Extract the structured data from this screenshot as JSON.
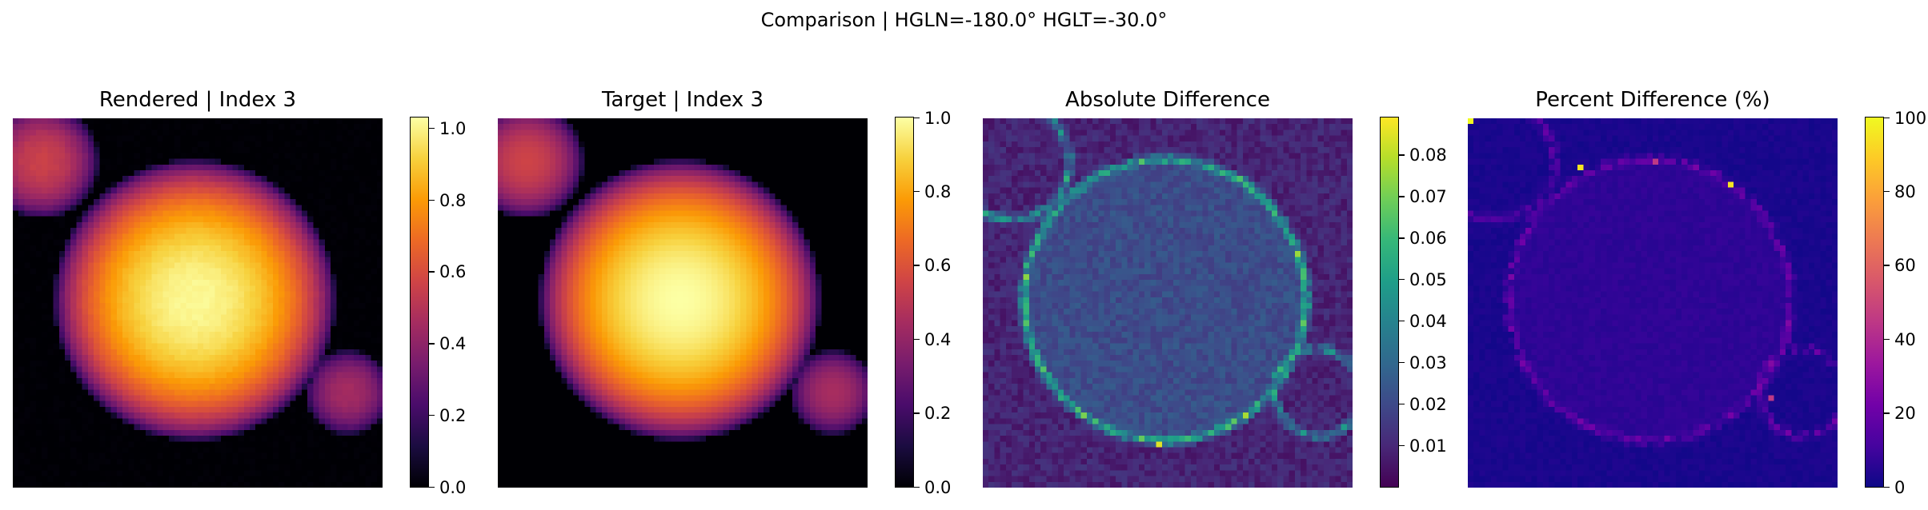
{
  "suptitle": "Comparison | HGLN=-180.0° HGLT=-30.0°",
  "chart_data": [
    {
      "type": "heatmap",
      "title": "Rendered | Index 3",
      "colormap": "inferno",
      "clim": [
        0.0,
        1.03
      ],
      "colorbar_ticks": [
        {
          "value": 0.0,
          "label": "0.0"
        },
        {
          "value": 0.2,
          "label": "0.2"
        },
        {
          "value": 0.4,
          "label": "0.4"
        },
        {
          "value": 0.6,
          "label": "0.6"
        },
        {
          "value": 0.8,
          "label": "0.8"
        },
        {
          "value": 1.0,
          "label": "1.0"
        }
      ],
      "grid_size": 64,
      "content": "three overlapping emission spheres: large central sphere peak ~1.0, smaller upper-left and lower-right spheres ~0.45"
    },
    {
      "type": "heatmap",
      "title": "Target | Index 3",
      "colormap": "inferno",
      "clim": [
        0.0,
        1.0
      ],
      "colorbar_ticks": [
        {
          "value": 0.0,
          "label": "0.0"
        },
        {
          "value": 0.2,
          "label": "0.2"
        },
        {
          "value": 0.4,
          "label": "0.4"
        },
        {
          "value": 0.6,
          "label": "0.6"
        },
        {
          "value": 0.8,
          "label": "0.8"
        },
        {
          "value": 1.0,
          "label": "1.0"
        }
      ],
      "grid_size": 64
    },
    {
      "type": "heatmap",
      "title": "Absolute Difference",
      "colormap": "viridis",
      "clim": [
        0.0,
        0.089
      ],
      "colorbar_ticks": [
        {
          "value": 0.01,
          "label": "0.01"
        },
        {
          "value": 0.02,
          "label": "0.02"
        },
        {
          "value": 0.03,
          "label": "0.03"
        },
        {
          "value": 0.04,
          "label": "0.04"
        },
        {
          "value": 0.05,
          "label": "0.05"
        },
        {
          "value": 0.06,
          "label": "0.06"
        },
        {
          "value": 0.07,
          "label": "0.07"
        },
        {
          "value": 0.08,
          "label": "0.08"
        }
      ],
      "grid_size": 64
    },
    {
      "type": "heatmap",
      "title": "Percent Difference (%)",
      "colormap": "plasma",
      "clim": [
        0,
        100
      ],
      "colorbar_ticks": [
        {
          "value": 0,
          "label": "0"
        },
        {
          "value": 20,
          "label": "20"
        },
        {
          "value": 40,
          "label": "40"
        },
        {
          "value": 60,
          "label": "60"
        },
        {
          "value": 80,
          "label": "80"
        },
        {
          "value": 100,
          "label": "100"
        }
      ],
      "grid_size": 64
    }
  ]
}
